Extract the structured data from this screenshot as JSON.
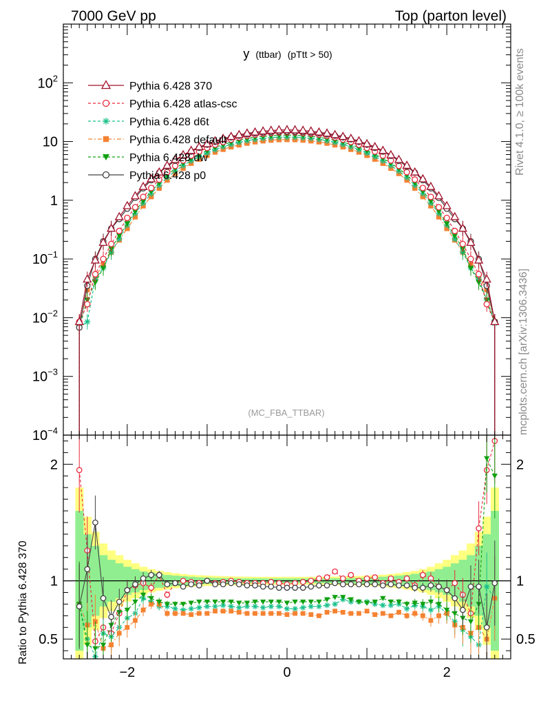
{
  "header": {
    "left": "7000 GeV pp",
    "right": "Top (parton level)"
  },
  "side": {
    "rivet": "Rivet 4.1.0, ≥ 100k events",
    "mcplots": "mcplots.cern.ch [arXiv:1306.3436]"
  },
  "chart_data": [
    {
      "panel": "main",
      "type": "line",
      "title": "y (ttbar) (pTtt > 50)",
      "title_main": "y",
      "title_sub": "(ttbar)",
      "title_cut": "(pTtt > 50)",
      "watermark": "(MC_FBA_TTBAR)",
      "yscale": "log",
      "xlim": [
        -2.8,
        2.8
      ],
      "ylim": [
        0.0001,
        1000
      ],
      "yticks": [
        {
          "v": 0.0001,
          "base": "10",
          "exp": "−4"
        },
        {
          "v": 0.001,
          "base": "10",
          "exp": "−3"
        },
        {
          "v": 0.01,
          "base": "10",
          "exp": "−2"
        },
        {
          "v": 0.1,
          "base": "10",
          "exp": "−1"
        },
        {
          "v": 1,
          "base": "1",
          "exp": ""
        },
        {
          "v": 10,
          "base": "10",
          "exp": ""
        },
        {
          "v": 100,
          "base": "10",
          "exp": "2"
        }
      ],
      "x": [
        -2.6,
        -2.5,
        -2.4,
        -2.3,
        -2.2,
        -2.1,
        -2.0,
        -1.9,
        -1.8,
        -1.7,
        -1.6,
        -1.5,
        -1.4,
        -1.3,
        -1.2,
        -1.1,
        -1.0,
        -0.9,
        -0.8,
        -0.7,
        -0.6,
        -0.5,
        -0.4,
        -0.3,
        -0.2,
        -0.1,
        0.0,
        0.1,
        0.2,
        0.3,
        0.4,
        0.5,
        0.6,
        0.7,
        0.8,
        0.9,
        1.0,
        1.1,
        1.2,
        1.3,
        1.4,
        1.5,
        1.6,
        1.7,
        1.8,
        1.9,
        2.0,
        2.1,
        2.2,
        2.3,
        2.4,
        2.5,
        2.6
      ],
      "series": [
        {
          "name": "Pythia 6.428 370",
          "color": "#a0102a",
          "marker": "triangle-open",
          "dash": "",
          "values": [
            0.0085,
            0.045,
            0.095,
            0.19,
            0.33,
            0.52,
            0.8,
            1.18,
            1.7,
            2.3,
            3.0,
            3.9,
            4.9,
            5.9,
            7.0,
            8.1,
            9.1,
            10.2,
            11.2,
            12.1,
            13.0,
            13.8,
            14.4,
            15.0,
            15.4,
            15.7,
            15.8,
            15.7,
            15.4,
            15.0,
            14.4,
            13.8,
            13.0,
            12.1,
            11.2,
            10.2,
            9.1,
            8.1,
            7.0,
            5.9,
            4.9,
            3.9,
            3.0,
            2.3,
            1.7,
            1.18,
            0.8,
            0.52,
            0.33,
            0.19,
            0.095,
            0.045,
            0.0085
          ]
        },
        {
          "name": "Pythia 6.428 atlas-csc",
          "color": "#e8283c",
          "marker": "circle-open",
          "dash": "4,3",
          "values": [
            0.0085,
            0.017,
            0.055,
            0.1,
            0.18,
            0.3,
            0.5,
            0.76,
            1.14,
            1.62,
            2.25,
            3.01,
            3.85,
            4.77,
            5.75,
            6.75,
            7.79,
            8.85,
            9.82,
            10.8,
            11.75,
            12.5,
            13.1,
            13.65,
            14.0,
            14.3,
            14.4,
            14.3,
            14.0,
            13.65,
            13.1,
            12.5,
            11.75,
            10.8,
            9.82,
            8.85,
            7.79,
            6.75,
            5.75,
            4.77,
            3.85,
            3.01,
            2.25,
            1.62,
            1.14,
            0.76,
            0.5,
            0.3,
            0.18,
            0.1,
            0.055,
            0.017,
            0.0085
          ]
        },
        {
          "name": "Pythia 6.428 d6t",
          "color": "#18c08a",
          "marker": "star",
          "dash": "4,3",
          "values": [
            0.0068,
            0.0085,
            0.045,
            0.07,
            0.13,
            0.22,
            0.38,
            0.6,
            0.9,
            1.3,
            1.8,
            2.45,
            3.15,
            3.9,
            4.7,
            5.55,
            6.4,
            7.3,
            8.15,
            8.95,
            9.7,
            10.35,
            10.9,
            11.35,
            11.65,
            11.85,
            11.9,
            11.85,
            11.65,
            11.35,
            10.9,
            10.35,
            9.7,
            8.95,
            8.15,
            7.3,
            6.4,
            5.55,
            4.7,
            3.9,
            3.15,
            2.45,
            1.8,
            1.3,
            0.9,
            0.6,
            0.38,
            0.22,
            0.13,
            0.07,
            0.045,
            0.02,
            0.008
          ]
        },
        {
          "name": "Pythia 6.428 default",
          "color": "#f58231",
          "marker": "square",
          "dash": "6,3,2,3",
          "values": [
            0.0068,
            0.03,
            0.05,
            0.08,
            0.13,
            0.21,
            0.33,
            0.52,
            0.8,
            1.15,
            1.6,
            2.2,
            2.85,
            3.5,
            4.25,
            5.0,
            5.8,
            6.6,
            7.35,
            8.1,
            8.75,
            9.35,
            9.85,
            10.25,
            10.55,
            10.75,
            10.8,
            10.75,
            10.55,
            10.25,
            9.85,
            9.35,
            8.75,
            8.1,
            7.35,
            6.6,
            5.8,
            5.0,
            4.25,
            3.5,
            2.85,
            2.2,
            1.6,
            1.15,
            0.8,
            0.52,
            0.33,
            0.21,
            0.13,
            0.08,
            0.05,
            0.03,
            0.0085
          ]
        },
        {
          "name": "Pythia 6.428 dw",
          "color": "#10a010",
          "marker": "triangle-down",
          "dash": "4,3",
          "values": [
            0.0068,
            0.02,
            0.04,
            0.07,
            0.15,
            0.25,
            0.4,
            0.65,
            0.98,
            1.42,
            1.98,
            2.7,
            3.45,
            4.3,
            5.15,
            6.05,
            7.0,
            7.95,
            8.85,
            9.75,
            10.5,
            11.2,
            11.8,
            12.25,
            12.55,
            12.8,
            12.85,
            12.8,
            12.55,
            12.25,
            11.8,
            11.2,
            10.5,
            9.75,
            8.85,
            7.95,
            7.0,
            6.05,
            5.15,
            4.3,
            3.45,
            2.7,
            1.98,
            1.42,
            0.98,
            0.65,
            0.4,
            0.25,
            0.15,
            0.07,
            0.04,
            0.02,
            0.0085
          ]
        },
        {
          "name": "Pythia 6.428 p0",
          "color": "#404040",
          "marker": "circle-open",
          "dash": "",
          "values": [
            0.0068,
            0.035,
            0.1,
            0.2,
            0.33,
            0.48,
            0.72,
            1.1,
            1.6,
            2.2,
            2.95,
            3.75,
            4.7,
            5.7,
            6.75,
            7.8,
            8.85,
            9.9,
            10.9,
            11.8,
            12.6,
            13.3,
            13.85,
            14.3,
            14.6,
            14.8,
            14.85,
            14.8,
            14.6,
            14.3,
            13.85,
            13.3,
            12.6,
            11.8,
            10.9,
            9.9,
            8.85,
            7.8,
            6.75,
            5.7,
            4.7,
            3.75,
            2.95,
            2.2,
            1.6,
            1.1,
            0.72,
            0.48,
            0.33,
            0.2,
            0.1,
            0.035,
            0.0085
          ]
        }
      ]
    },
    {
      "panel": "ratio",
      "type": "line",
      "ylabel": "Ratio to Pythia 6.428 370",
      "xlim": [
        -2.8,
        2.8
      ],
      "ylim": [
        0.33,
        2.25
      ],
      "yticks": [
        {
          "v": 0.5,
          "label": "0.5"
        },
        {
          "v": 1,
          "label": "1"
        },
        {
          "v": 2,
          "label": "2"
        }
      ],
      "xticks": [
        {
          "v": -2,
          "label": "−2"
        },
        {
          "v": 0,
          "label": "0"
        },
        {
          "v": 2,
          "label": "2"
        }
      ],
      "band_inner": [
        0.6,
        0.4,
        0.3,
        0.22,
        0.18,
        0.15,
        0.12,
        0.1,
        0.08,
        0.07,
        0.06,
        0.05,
        0.045,
        0.04,
        0.035,
        0.03,
        0.028,
        0.025,
        0.023,
        0.022,
        0.021,
        0.02,
        0.02,
        0.02,
        0.02,
        0.02,
        0.02,
        0.02,
        0.02,
        0.02,
        0.02,
        0.02,
        0.021,
        0.022,
        0.023,
        0.025,
        0.028,
        0.03,
        0.035,
        0.04,
        0.045,
        0.05,
        0.06,
        0.07,
        0.08,
        0.1,
        0.12,
        0.15,
        0.18,
        0.22,
        0.3,
        0.4,
        0.6
      ],
      "band_outer": [
        0.8,
        0.55,
        0.42,
        0.32,
        0.26,
        0.22,
        0.18,
        0.15,
        0.12,
        0.1,
        0.085,
        0.075,
        0.065,
        0.058,
        0.052,
        0.048,
        0.045,
        0.042,
        0.04,
        0.038,
        0.036,
        0.035,
        0.034,
        0.034,
        0.034,
        0.034,
        0.034,
        0.034,
        0.034,
        0.034,
        0.034,
        0.035,
        0.036,
        0.038,
        0.04,
        0.042,
        0.045,
        0.048,
        0.052,
        0.058,
        0.065,
        0.075,
        0.085,
        0.1,
        0.12,
        0.15,
        0.18,
        0.22,
        0.26,
        0.32,
        0.42,
        0.55,
        0.8
      ],
      "series": [
        {
          "name": "Pythia 6.428 atlas-csc",
          "values": [
            1.95,
            1.26,
            0.48,
            0.6,
            0.55,
            0.72,
            0.92,
            0.96,
            0.98,
            0.94,
            1.05,
            0.88,
            0.98,
            1.0,
            0.99,
            0.98,
            1.0,
            0.98,
            0.99,
            1.0,
            0.99,
            0.98,
            0.98,
            0.98,
            0.99,
            0.98,
            0.97,
            0.98,
            0.99,
            1.0,
            1.02,
            1.03,
            1.08,
            1.02,
            1.05,
            1.0,
            1.02,
            1.03,
            0.98,
            1.02,
            0.99,
            1.02,
            0.96,
            1.05,
            1.02,
            0.95,
            0.92,
            0.98,
            0.88,
            0.72,
            1.45,
            1.95,
            2.2
          ]
        },
        {
          "name": "Pythia 6.428 d6t",
          "values": [
            0.8,
            0.5,
            0.35,
            0.55,
            0.52,
            0.6,
            0.68,
            0.72,
            0.85,
            0.82,
            0.78,
            0.78,
            0.76,
            0.75,
            0.76,
            0.77,
            0.78,
            0.78,
            0.79,
            0.78,
            0.77,
            0.78,
            0.78,
            0.77,
            0.78,
            0.78,
            0.76,
            0.76,
            0.77,
            0.78,
            0.78,
            0.79,
            0.8,
            0.84,
            0.82,
            0.82,
            0.82,
            0.8,
            0.79,
            0.79,
            0.8,
            0.76,
            0.79,
            0.78,
            0.75,
            0.78,
            0.72,
            0.65,
            0.58,
            0.52,
            0.45,
            0.95,
            0.85
          ]
        },
        {
          "name": "Pythia 6.428 default",
          "values": [
            0.8,
            0.62,
            0.65,
            0.42,
            0.45,
            0.55,
            0.6,
            0.66,
            0.75,
            0.8,
            0.8,
            0.72,
            0.72,
            0.72,
            0.71,
            0.72,
            0.72,
            0.74,
            0.74,
            0.74,
            0.73,
            0.72,
            0.72,
            0.72,
            0.72,
            0.72,
            0.71,
            0.72,
            0.72,
            0.71,
            0.7,
            0.73,
            0.74,
            0.73,
            0.72,
            0.72,
            0.74,
            0.71,
            0.72,
            0.7,
            0.73,
            0.7,
            0.72,
            0.7,
            0.66,
            0.7,
            0.72,
            0.62,
            0.6,
            0.55,
            0.6,
            0.5,
            0.85
          ]
        },
        {
          "name": "Pythia 6.428 dw",
          "values": [
            0.8,
            0.45,
            0.42,
            0.45,
            0.62,
            0.73,
            0.75,
            0.82,
            0.88,
            0.85,
            0.82,
            0.8,
            0.8,
            0.8,
            0.81,
            0.82,
            0.82,
            0.82,
            0.82,
            0.82,
            0.81,
            0.81,
            0.82,
            0.82,
            0.82,
            0.82,
            0.81,
            0.82,
            0.82,
            0.82,
            0.82,
            0.84,
            0.86,
            0.86,
            0.84,
            0.82,
            0.81,
            0.82,
            0.85,
            0.82,
            0.82,
            0.8,
            0.81,
            0.8,
            0.82,
            0.8,
            0.75,
            0.72,
            0.68,
            0.65,
            0.8,
            2.05,
            1.9
          ]
        },
        {
          "name": "Pythia 6.428 p0",
          "values": [
            0.78,
            1.1,
            1.5,
            0.85,
            0.69,
            0.82,
            0.92,
            0.97,
            1.02,
            1.05,
            1.05,
            0.97,
            0.98,
            0.95,
            0.97,
            0.96,
            1.0,
            0.97,
            0.97,
            0.98,
            0.97,
            0.96,
            0.96,
            0.95,
            0.95,
            0.94,
            0.94,
            0.94,
            0.94,
            0.95,
            0.96,
            0.96,
            0.98,
            0.97,
            0.97,
            0.97,
            0.97,
            0.97,
            0.96,
            0.97,
            0.96,
            0.96,
            0.94,
            0.94,
            0.96,
            0.95,
            0.92,
            0.85,
            0.75,
            0.95,
            0.95,
            0.6,
            0.98
          ]
        }
      ]
    }
  ]
}
